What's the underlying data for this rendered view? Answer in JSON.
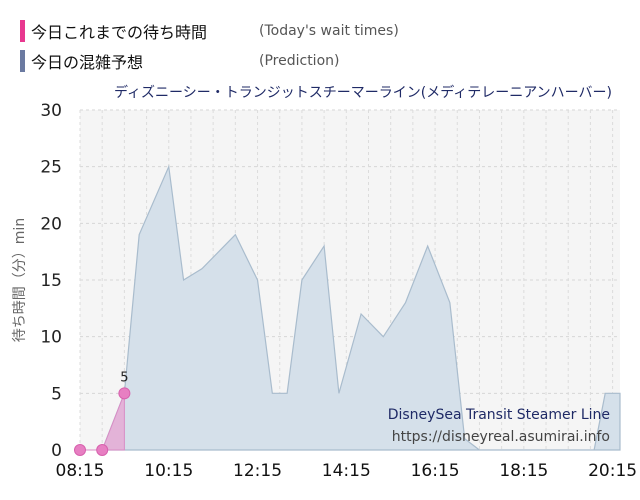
{
  "legend": [
    {
      "label": "今日これまでの待ち時間",
      "sub": "(Today's wait times)",
      "color": "#e8388f"
    },
    {
      "label": "今日の混雑予想",
      "sub": "(Prediction)",
      "color": "#6b7aa1"
    }
  ],
  "watermark": {
    "name": "DisneySea Transit Steamer Line",
    "url": "https://disneyreal.asumirai.info"
  },
  "chart_data": {
    "type": "area",
    "title": "ディズニーシー・トランジットスチーマーライン(メディテレーニアンハーバー)",
    "ylabel": "待ち時間（分）min",
    "xlabel": "",
    "ylim": [
      0,
      30
    ],
    "yticks": [
      0,
      5,
      10,
      15,
      20,
      25,
      30
    ],
    "xlim": [
      "08:15",
      "20:25"
    ],
    "xticks": [
      "08:15",
      "10:15",
      "12:15",
      "14:15",
      "16:15",
      "18:15",
      "20:15"
    ],
    "grid": true,
    "series": [
      {
        "name": "今日の混雑予想",
        "color": "#c9d6e3",
        "points": [
          [
            "08:45",
            0
          ],
          [
            "09:15",
            5
          ],
          [
            "09:35",
            19
          ],
          [
            "10:15",
            25
          ],
          [
            "10:35",
            15
          ],
          [
            "11:00",
            16
          ],
          [
            "11:45",
            19
          ],
          [
            "12:15",
            15
          ],
          [
            "12:35",
            5
          ],
          [
            "12:55",
            5
          ],
          [
            "13:15",
            15
          ],
          [
            "13:45",
            18
          ],
          [
            "14:05",
            5
          ],
          [
            "14:35",
            12
          ],
          [
            "15:05",
            10
          ],
          [
            "15:35",
            13
          ],
          [
            "16:05",
            18
          ],
          [
            "16:35",
            13
          ],
          [
            "16:55",
            1
          ],
          [
            "17:15",
            0
          ],
          [
            "17:45",
            0
          ],
          [
            "18:15",
            0
          ],
          [
            "19:15",
            0
          ],
          [
            "19:50",
            0
          ],
          [
            "20:05",
            5
          ],
          [
            "20:25",
            5
          ]
        ]
      },
      {
        "name": "今日これまでの待ち時間",
        "color": "#e8388f",
        "points": [
          [
            "08:15",
            0
          ],
          [
            "08:45",
            0
          ],
          [
            "09:15",
            5
          ]
        ],
        "labels": [
          {
            "x": "09:15",
            "text": "5"
          }
        ]
      }
    ]
  }
}
